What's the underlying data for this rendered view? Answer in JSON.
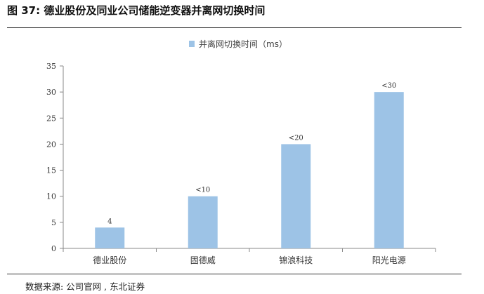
{
  "figure": {
    "title": "图 37: 德业股份及同业公司储能逆变器并离网切换时间",
    "source": "数据来源: 公司官网 , 东北证券"
  },
  "chart_data": {
    "type": "bar",
    "categories": [
      "德业股份",
      "固德威",
      "锦浪科技",
      "阳光电源"
    ],
    "values": [
      4,
      10,
      20,
      30
    ],
    "data_labels": [
      "4",
      "<10",
      "<20",
      "<30"
    ],
    "series": [
      {
        "name": "并离网切换时间（ms）",
        "values": [
          4,
          10,
          20,
          30
        ],
        "color": "#9dc3e6"
      }
    ],
    "ylim": [
      0,
      35
    ],
    "yticks": [
      0,
      5,
      10,
      15,
      20,
      25,
      30,
      35
    ],
    "legend_position": "top-center",
    "grid": false,
    "bar_color": "#9dc3e6",
    "axis_color": "#888888"
  }
}
